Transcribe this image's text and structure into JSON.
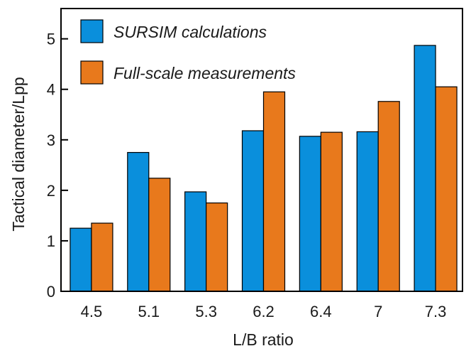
{
  "chart_data": {
    "type": "bar",
    "xlabel": "L/B ratio",
    "ylabel": "Tactical diameter/Lpp",
    "categories": [
      "4.5",
      "5.1",
      "5.3",
      "6.2",
      "6.4",
      "7",
      "7.3"
    ],
    "ylim": [
      0,
      5.6
    ],
    "yticks": [
      "0",
      "1",
      "2",
      "3",
      "4",
      "5"
    ],
    "grid": false,
    "legend_position": "top-left",
    "series": [
      {
        "name": "SURSIM calculations",
        "color": "#0a8fdc",
        "values": [
          1.25,
          2.75,
          1.97,
          3.18,
          3.07,
          3.16,
          4.87
        ]
      },
      {
        "name": "Full-scale measurements",
        "color": "#e8791c",
        "values": [
          1.35,
          2.24,
          1.75,
          3.95,
          3.15,
          3.76,
          4.05
        ]
      }
    ]
  }
}
